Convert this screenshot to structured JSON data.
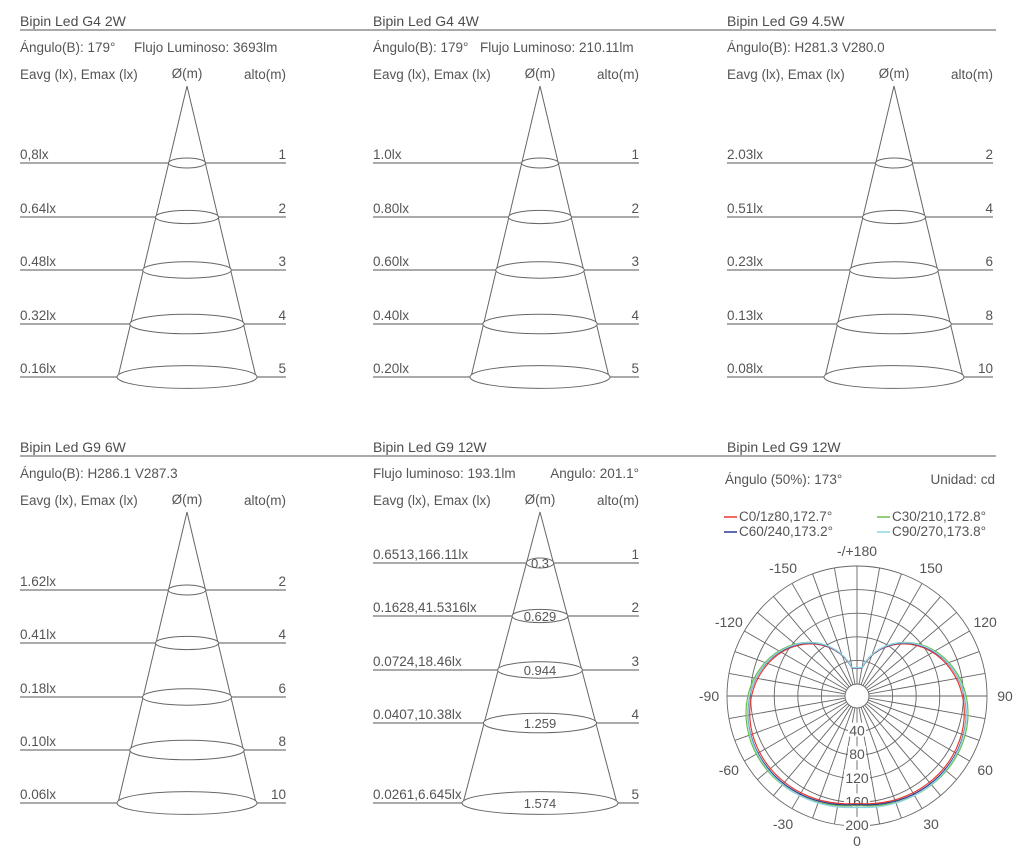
{
  "panels": [
    {
      "title": "Bipin Led G4 2W",
      "info": [
        {
          "text": "Ángulo(B): 179°"
        },
        {
          "text": "Flujo Luminoso: 3693lm"
        }
      ],
      "header_left": "Eavg (lx), Emax (lx)",
      "header_diameter": "Ø(m)",
      "header_right": "alto(m)",
      "rows": [
        {
          "left": "0,8lx",
          "right": "1"
        },
        {
          "left": "0.64lx",
          "right": "2"
        },
        {
          "left": "0.48lx",
          "right": "3"
        },
        {
          "left": "0.32lx",
          "right": "4"
        },
        {
          "left": "0.16lx",
          "right": "5"
        }
      ]
    },
    {
      "title": "Bipin Led G4 4W",
      "info": [
        {
          "text": "Ángulo(B): 179°"
        },
        {
          "text": "Flujo Luminoso: 210.11lm"
        }
      ],
      "header_left": "Eavg (lx), Emax (lx)",
      "header_diameter": "Ø(m)",
      "header_right": "alto(m)",
      "rows": [
        {
          "left": "1.0lx",
          "right": "1"
        },
        {
          "left": "0.80lx",
          "right": "2"
        },
        {
          "left": "0.60lx",
          "right": "3"
        },
        {
          "left": "0.40lx",
          "right": "4"
        },
        {
          "left": "0.20lx",
          "right": "5"
        }
      ]
    },
    {
      "title": "Bipin Led G9 4.5W",
      "info": [
        {
          "text": "Ángulo(B): H281.3 V280.0"
        }
      ],
      "header_left": "Eavg (lx), Emax (lx)",
      "header_diameter": "Ø(m)",
      "header_right": "alto(m)",
      "rows": [
        {
          "left": "2.03lx",
          "right": "2"
        },
        {
          "left": "0.51lx",
          "right": "4"
        },
        {
          "left": "0.23lx",
          "right": "6"
        },
        {
          "left": "0.13lx",
          "right": "8"
        },
        {
          "left": "0.08lx",
          "right": "10"
        }
      ]
    },
    {
      "title": "Bipin Led G9 6W",
      "info": [
        {
          "text": "Ángulo(B): H286.1 V287.3"
        }
      ],
      "header_left": "Eavg (lx), Emax (lx)",
      "header_diameter": "Ø(m)",
      "header_right": "alto(m)",
      "rows": [
        {
          "left": "1.62lx",
          "right": "2"
        },
        {
          "left": "0.41lx",
          "right": "4"
        },
        {
          "left": "0.18lx",
          "right": "6"
        },
        {
          "left": "0.10lx",
          "right": "8"
        },
        {
          "left": "0.06lx",
          "right": "10"
        }
      ]
    },
    {
      "title": "Bipin Led G9 12W",
      "info": [
        {
          "text": "Flujo luminoso: 193.1lm"
        },
        {
          "text": "Angulo: 201.1°"
        }
      ],
      "header_left": "Eavg (lx), Emax (lx)",
      "header_diameter": "Ø(m)",
      "header_right": "alto(m)",
      "rows": [
        {
          "left": "0.6513,166.11lx",
          "right": "1",
          "diameter": "0.3"
        },
        {
          "left": "0.1628,41.5316lx",
          "right": "2",
          "diameter": "0.629"
        },
        {
          "left": "0.0724,18.46lx",
          "right": "3",
          "diameter": "0.944"
        },
        {
          "left": "0.0407,10.38lx",
          "right": "4",
          "diameter": "1.259"
        },
        {
          "left": "0.0261,6.645lx",
          "right": "5",
          "diameter": "1.574"
        }
      ]
    }
  ],
  "polar": {
    "title": "Bipin Led G9 12W",
    "angle_label": "Ángulo (50%): 173°",
    "unit_label": "Unidad: cd",
    "legend": [
      {
        "label": "C0/1z80,172.7°",
        "color": "#e8392f"
      },
      {
        "label": "C30/210,172.8°",
        "color": "#6cbf4a"
      },
      {
        "label": "C60/240,173.2°",
        "color": "#2b3a8f"
      },
      {
        "label": "C90/270,173.8°",
        "color": "#8dd4ea"
      }
    ],
    "angle_labels": [
      {
        "text": "-/+180",
        "deg": 180
      },
      {
        "text": "150",
        "deg": 150
      },
      {
        "text": "-150",
        "deg": -150
      },
      {
        "text": "120",
        "deg": 120
      },
      {
        "text": "-120",
        "deg": -120
      },
      {
        "text": "90",
        "deg": 90
      },
      {
        "text": "-90",
        "deg": -90
      },
      {
        "text": "60",
        "deg": 60
      },
      {
        "text": "-60",
        "deg": -60
      },
      {
        "text": "30",
        "deg": 30
      },
      {
        "text": "-30",
        "deg": -30
      },
      {
        "text": "0",
        "deg": 0
      }
    ],
    "rings": [
      40,
      80,
      120,
      160,
      200
    ],
    "ring_labels": [
      "40",
      "80",
      "120",
      "160",
      "200"
    ],
    "curve_base_cd": 165
  }
}
